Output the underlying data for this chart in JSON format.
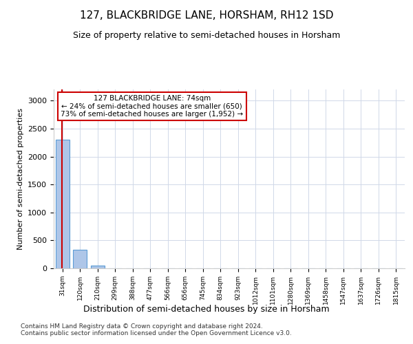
{
  "title": "127, BLACKBRIDGE LANE, HORSHAM, RH12 1SD",
  "subtitle": "Size of property relative to semi-detached houses in Horsham",
  "xlabel": "Distribution of semi-detached houses by size in Horsham",
  "ylabel": "Number of semi-detached properties",
  "bar_heights": [
    2300,
    330,
    50,
    0,
    0,
    0,
    0,
    0,
    0,
    0,
    0,
    0,
    0,
    0,
    0,
    0,
    0,
    0,
    0,
    0
  ],
  "bar_color": "#aec6e8",
  "bar_edge_color": "#5b9bd5",
  "x_labels": [
    "31sqm",
    "120sqm",
    "210sqm",
    "299sqm",
    "388sqm",
    "477sqm",
    "566sqm",
    "656sqm",
    "745sqm",
    "834sqm",
    "923sqm",
    "1012sqm",
    "1101sqm",
    "1280sqm",
    "1369sqm",
    "1458sqm",
    "1547sqm",
    "1637sqm",
    "1726sqm",
    "1815sqm"
  ],
  "ylim": [
    0,
    3200
  ],
  "yticks": [
    0,
    500,
    1000,
    1500,
    2000,
    2500,
    3000
  ],
  "red_line_x": 0.47,
  "red_line_color": "#cc0000",
  "annotation_text": "127 BLACKBRIDGE LANE: 74sqm\n← 24% of semi-detached houses are smaller (650)\n73% of semi-detached houses are larger (1,952) →",
  "footer_text": "Contains HM Land Registry data © Crown copyright and database right 2024.\nContains public sector information licensed under the Open Government Licence v3.0.",
  "bg_color": "#ffffff",
  "grid_color": "#d0d8e8",
  "annotation_box_color": "#ffdddd"
}
